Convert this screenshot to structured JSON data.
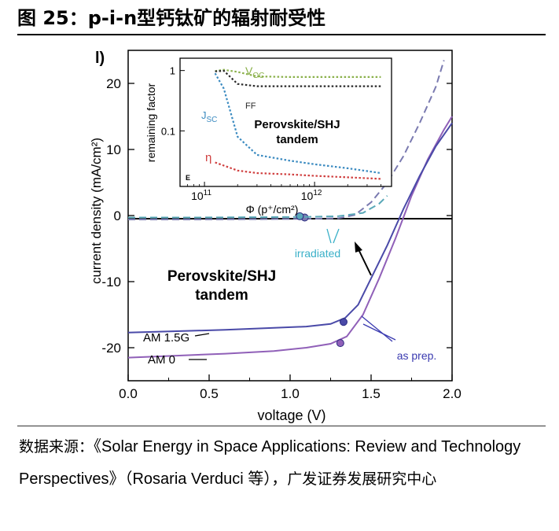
{
  "figure": {
    "title": "图 25：p-i-n型钙钛矿的辐射耐受性",
    "source_prefix": "数据来源：",
    "source_ref": "《Solar Energy in Space Applications: Review and Technology Perspectives》（Rosaria Verduci 等），",
    "source_suffix": "广发证券发展研究中心"
  },
  "chart_data": [
    {
      "type": "line",
      "panel_label": "l)",
      "xlabel": "voltage (V)",
      "ylabel": "current density (mA/cm²)",
      "xlim": [
        0.0,
        2.0
      ],
      "ylim": [
        -25,
        25
      ],
      "x_ticks": [
        "0.0",
        "0.5",
        "1.0",
        "1.5",
        "2.0"
      ],
      "y_ticks": [
        "-20",
        "-10",
        "0",
        "10",
        "20"
      ],
      "grid": false,
      "series": [
        {
          "name": "AM 0",
          "color": "#9060b8",
          "style": "solid",
          "x": [
            0.0,
            0.3,
            0.6,
            0.9,
            1.1,
            1.25,
            1.35,
            1.45,
            1.55,
            1.65,
            1.75,
            1.85,
            1.95,
            2.0
          ],
          "y": [
            -21.5,
            -21.2,
            -20.9,
            -20.5,
            -20.0,
            -19.4,
            -18.3,
            -15.0,
            -9.5,
            -3.5,
            3.0,
            8.5,
            13.0,
            15.0
          ],
          "marker_point": [
            1.31,
            -19.3
          ]
        },
        {
          "name": "AM 1.5G",
          "color": "#4a4aa8",
          "style": "solid",
          "x": [
            0.0,
            0.3,
            0.6,
            0.9,
            1.1,
            1.25,
            1.34,
            1.42,
            1.5,
            1.6,
            1.7,
            1.8,
            1.9,
            2.0
          ],
          "y": [
            -17.7,
            -17.5,
            -17.3,
            -17.0,
            -16.8,
            -16.4,
            -15.5,
            -13.5,
            -9.5,
            -4.5,
            1.0,
            6.0,
            10.5,
            14.0
          ],
          "marker_point": [
            1.33,
            -16.1
          ]
        },
        {
          "name": "irradiated",
          "color": "#7a7ab0",
          "style": "dashed",
          "x": [
            0.0,
            0.4,
            0.8,
            1.1,
            1.3,
            1.4,
            1.5,
            1.6,
            1.7,
            1.8,
            1.9,
            1.95
          ],
          "y": [
            -0.6,
            -0.6,
            -0.55,
            -0.5,
            -0.4,
            0.1,
            2.0,
            5.0,
            9.0,
            14.0,
            19.5,
            23.5
          ],
          "marker_point": [
            1.09,
            -0.3
          ]
        },
        {
          "name": "irradiated",
          "color": "#5aa8b8",
          "style": "dashed",
          "x": [
            0.0,
            0.4,
            0.8,
            1.1,
            1.3,
            1.45,
            1.55,
            1.6
          ],
          "y": [
            -0.3,
            -0.3,
            -0.25,
            -0.2,
            -0.1,
            0.4,
            1.8,
            3.0
          ],
          "marker_point": [
            1.06,
            -0.1
          ]
        }
      ],
      "annotations": {
        "tandem_line1": "Perovskite/SHJ",
        "tandem_line2": "tandem",
        "am15g": "AM 1.5G",
        "am0": "AM 0",
        "irradiated": "irradiated",
        "as_prep": "as prep."
      }
    },
    {
      "type": "line",
      "scale": "log-log",
      "xlabel": "Φ (p⁺/cm²)",
      "ylabel": "remaining factor",
      "xlim": [
        60000000000.0,
        5000000000000.0
      ],
      "ylim": [
        0.012,
        1.6
      ],
      "x_ticks": [
        {
          "base": "10",
          "exp": "11"
        },
        {
          "base": "10",
          "exp": "12"
        }
      ],
      "y_ticks": [
        "1",
        "0.1"
      ],
      "panel_label": "E",
      "annotation_line1": "Perovskite/SHJ",
      "annotation_line2": "tandem",
      "series": [
        {
          "name": "V",
          "sub": "OC",
          "color": "#8ab04a",
          "style": "dotted",
          "x": [
            125000000000.0,
            150000000000.0,
            200000000000.0,
            300000000000.0,
            600000000000.0,
            1000000000000.0,
            2000000000000.0,
            4000000000000.0
          ],
          "y": [
            0.98,
            1.03,
            0.95,
            0.8,
            0.78,
            0.78,
            0.78,
            0.78
          ]
        },
        {
          "name": "FF",
          "sub": "",
          "color": "#2a2a2a",
          "style": "dotted",
          "x": [
            125000000000.0,
            150000000000.0,
            200000000000.0,
            300000000000.0,
            600000000000.0,
            1000000000000.0,
            2000000000000.0,
            4000000000000.0
          ],
          "y": [
            0.97,
            0.99,
            0.6,
            0.55,
            0.55,
            0.55,
            0.55,
            0.55
          ]
        },
        {
          "name": "J",
          "sub": "SC",
          "color": "#3a8ac0",
          "style": "dotted",
          "x": [
            125000000000.0,
            150000000000.0,
            200000000000.0,
            300000000000.0,
            600000000000.0,
            1000000000000.0,
            2000000000000.0,
            4000000000000.0
          ],
          "y": [
            0.9,
            0.5,
            0.08,
            0.04,
            0.032,
            0.028,
            0.024,
            0.02
          ]
        },
        {
          "name": "η",
          "sub": "",
          "color": "#d04040",
          "style": "dotted",
          "x": [
            125000000000.0,
            200000000000.0,
            300000000000.0,
            600000000000.0,
            1000000000000.0,
            2000000000000.0,
            4000000000000.0
          ],
          "y": [
            0.03,
            0.022,
            0.02,
            0.019,
            0.018,
            0.017,
            0.016
          ]
        }
      ]
    }
  ]
}
